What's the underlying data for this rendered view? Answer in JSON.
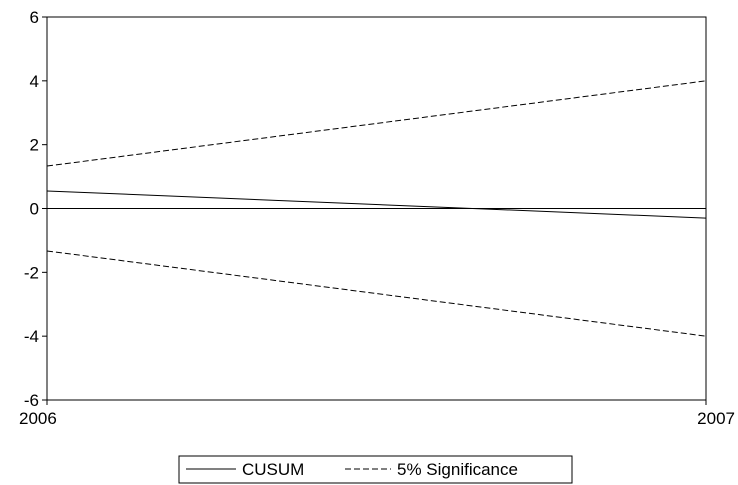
{
  "chart_data": {
    "type": "line",
    "title": "",
    "xlabel": "",
    "ylabel": "",
    "x": [
      2006,
      2007
    ],
    "xlim": [
      2006,
      2007
    ],
    "ylim": [
      -6,
      6
    ],
    "xticks": [
      "2006",
      "2007"
    ],
    "yticks": [
      "6",
      "4",
      "2",
      "0",
      "-2",
      "-4",
      "-6"
    ],
    "zero_line": true,
    "grid": false,
    "legend_position": "bottom-center",
    "series": [
      {
        "name": "CUSUM",
        "values": [
          0.55,
          -0.3
        ],
        "style": "solid",
        "color": "#000000"
      },
      {
        "name": "5% Significance",
        "values": [
          1.33,
          4.0
        ],
        "style": "dashed",
        "color": "#000000"
      },
      {
        "name": "5% Significance",
        "values": [
          -1.33,
          -4.0
        ],
        "style": "dashed",
        "color": "#000000",
        "legend": false
      }
    ]
  }
}
